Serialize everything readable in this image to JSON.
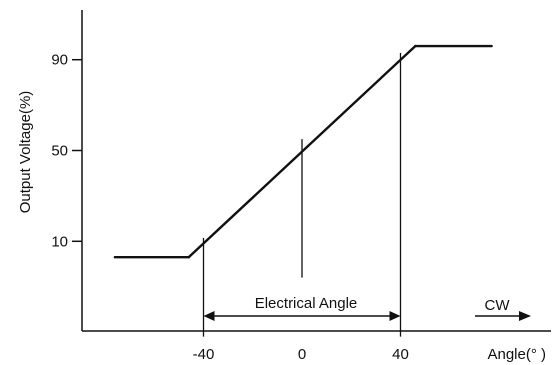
{
  "chart_data": {
    "type": "line",
    "title": "",
    "xlabel": "Angle(° )",
    "ylabel": "Output Voltage(%)",
    "x_ticks": [
      -40,
      0,
      40
    ],
    "x_tick_labels": [
      "-40",
      "0",
      "40"
    ],
    "y_ticks": [
      10,
      50,
      90
    ],
    "y_tick_labels": [
      "10",
      "50",
      "90"
    ],
    "xlim": [
      -80,
      84
    ],
    "ylim": [
      -29,
      102
    ],
    "grid": false,
    "series": [
      {
        "points": [
          [
            -76,
            3
          ],
          [
            -46,
            3
          ],
          [
            46,
            96
          ],
          [
            77,
            96
          ]
        ]
      }
    ],
    "reference_lines_x": [
      -40,
      0,
      40
    ],
    "annotations": {
      "range_label": "Electrical Angle",
      "range": [
        -40,
        40
      ],
      "direction_label": "CW"
    },
    "line_color": "#111111"
  }
}
